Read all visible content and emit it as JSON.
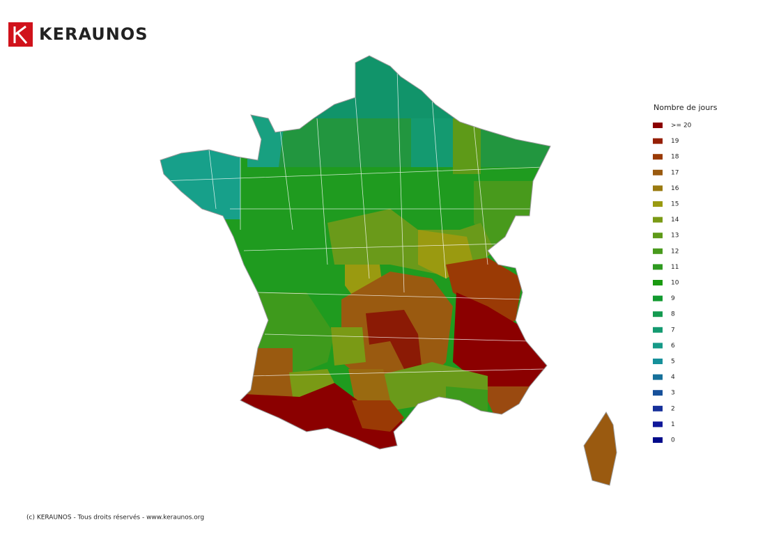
{
  "header": {
    "brand": "KERAUNOS"
  },
  "legend": {
    "title": "Nombre de jours",
    "items": [
      {
        "label": ">= 20",
        "color": "#8b0000"
      },
      {
        "label": "19",
        "color": "#951f05"
      },
      {
        "label": "18",
        "color": "#9a3a05"
      },
      {
        "label": "17",
        "color": "#9a5a10"
      },
      {
        "label": "16",
        "color": "#9a7a10"
      },
      {
        "label": "15",
        "color": "#9a9a10"
      },
      {
        "label": "14",
        "color": "#7a9a15"
      },
      {
        "label": "13",
        "color": "#5e9a18"
      },
      {
        "label": "12",
        "color": "#489a1c"
      },
      {
        "label": "11",
        "color": "#2e9a20"
      },
      {
        "label": "10",
        "color": "#1a9a10"
      },
      {
        "label": "9",
        "color": "#129a30"
      },
      {
        "label": "8",
        "color": "#149a50"
      },
      {
        "label": "7",
        "color": "#149a70"
      },
      {
        "label": "6",
        "color": "#169a88"
      },
      {
        "label": "5",
        "color": "#16909a"
      },
      {
        "label": "4",
        "color": "#16709a"
      },
      {
        "label": "3",
        "color": "#16509a"
      },
      {
        "label": "2",
        "color": "#16309a"
      },
      {
        "label": "1",
        "color": "#10189a"
      },
      {
        "label": "0",
        "color": "#000a8a"
      }
    ]
  },
  "footer": {
    "text": "(c) KERAUNOS - Tous droits réservés - www.keraunos.org"
  }
}
